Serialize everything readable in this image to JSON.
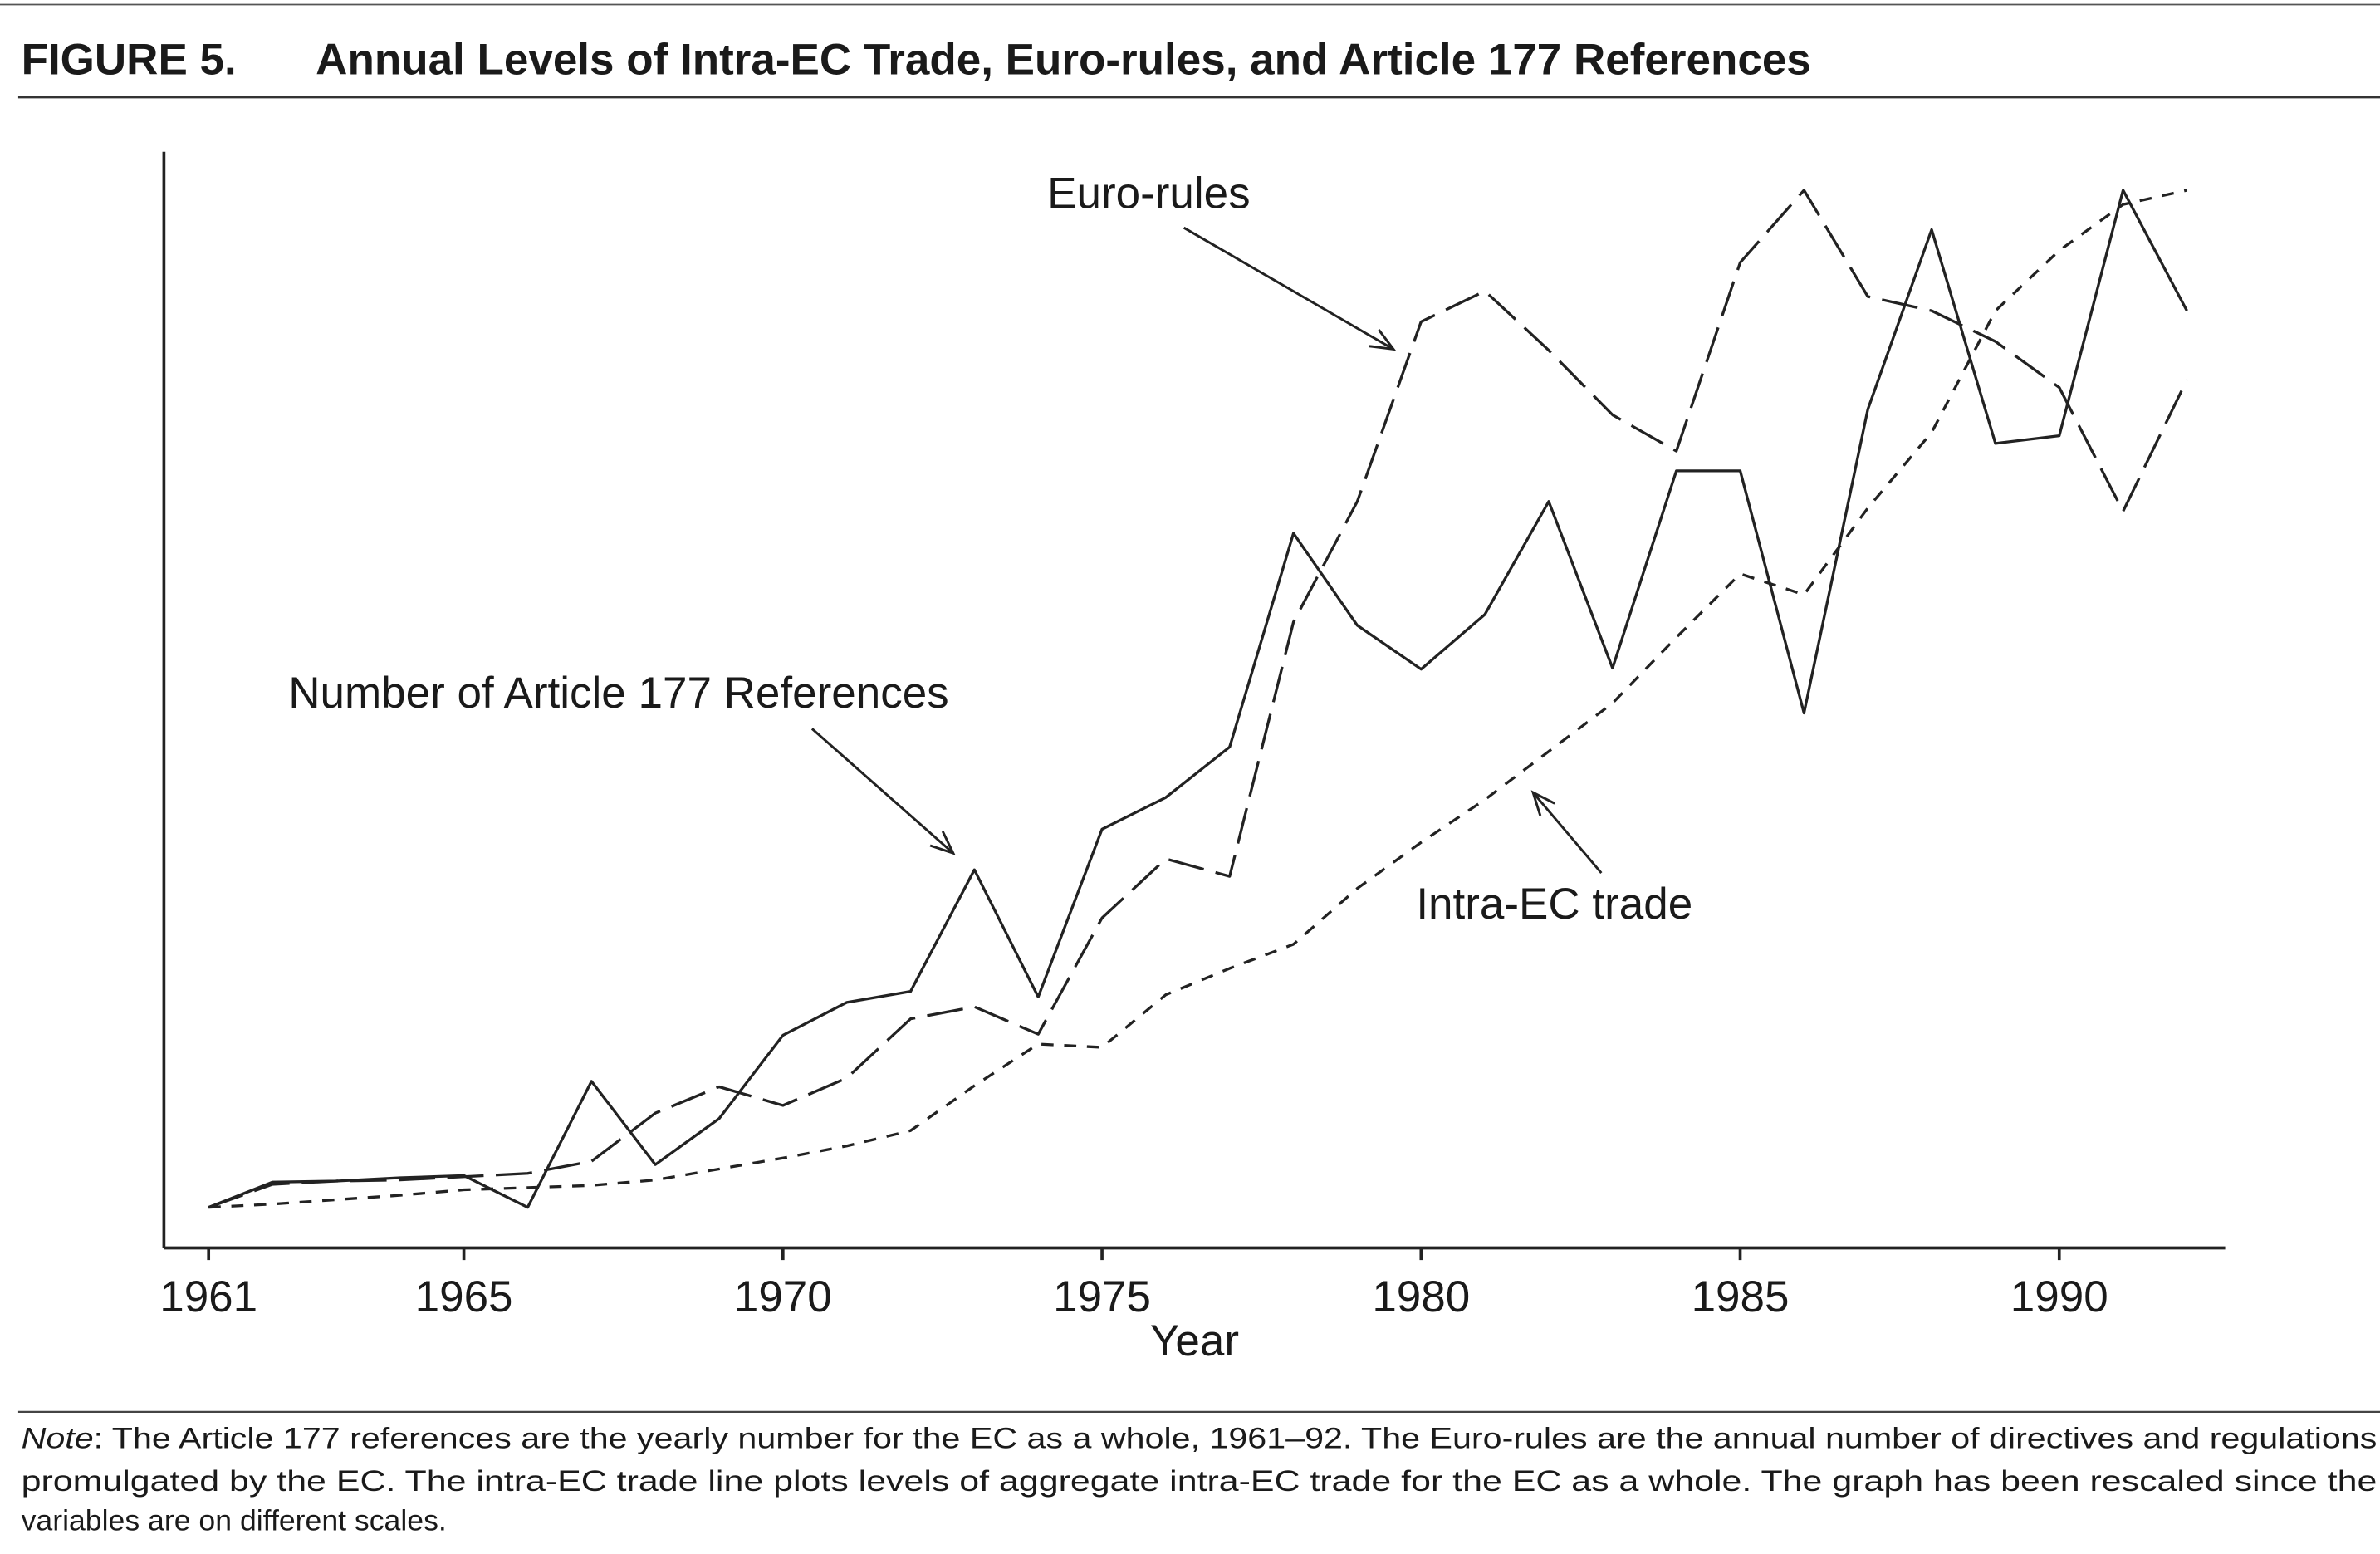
{
  "chart_data": {
    "type": "line",
    "figure_label": "FIGURE 5.",
    "title": "Annual Levels of Intra-EC Trade, Euro-rules, and Article 177 References",
    "xlabel": "Year",
    "x": [
      1961,
      1962,
      1963,
      1964,
      1965,
      1966,
      1967,
      1968,
      1969,
      1970,
      1971,
      1972,
      1973,
      1974,
      1975,
      1976,
      1977,
      1978,
      1979,
      1980,
      1981,
      1982,
      1983,
      1984,
      1985,
      1986,
      1987,
      1988,
      1989,
      1990,
      1991,
      1992
    ],
    "xlim": [
      1960.3,
      1992.6
    ],
    "xticks": [
      1961,
      1965,
      1970,
      1975,
      1980,
      1985,
      1990
    ],
    "ylim": [
      0,
      100
    ],
    "series": [
      {
        "name": "Number of Article 177 References",
        "color": "#222222",
        "dash": "solid",
        "values": [
          3.7,
          6.0,
          6.1,
          6.4,
          6.6,
          3.7,
          15.2,
          7.6,
          11.8,
          19.4,
          22.4,
          23.4,
          34.5,
          22.9,
          38.2,
          41.1,
          45.7,
          65.2,
          56.8,
          52.8,
          57.8,
          68.1,
          52.9,
          70.9,
          70.9,
          48.8,
          76.5,
          92.9,
          73.4,
          74.1,
          96.5,
          85.5
        ]
      },
      {
        "name": "Euro-rules",
        "color": "#222222",
        "dash": "long",
        "values": [
          3.7,
          5.8,
          6.1,
          6.2,
          6.5,
          6.8,
          7.9,
          12.3,
          14.7,
          13.0,
          15.5,
          20.9,
          22.0,
          19.5,
          30.1,
          35.5,
          33.9,
          57.1,
          68.1,
          84.5,
          87.3,
          81.9,
          76.0,
          72.7,
          89.9,
          96.5,
          86.8,
          85.5,
          82.7,
          78.5,
          67.2,
          79.2
        ]
      },
      {
        "name": "Intra-EC trade",
        "color": "#222222",
        "dash": "short",
        "values": [
          3.7,
          4.0,
          4.4,
          4.8,
          5.3,
          5.5,
          5.7,
          6.2,
          7.2,
          8.2,
          9.3,
          10.7,
          14.8,
          18.6,
          18.3,
          23.1,
          25.5,
          27.7,
          32.8,
          37.0,
          40.9,
          45.3,
          49.7,
          55.7,
          61.5,
          59.6,
          67.5,
          74.4,
          85.5,
          91.0,
          95.2,
          96.5
        ]
      }
    ]
  },
  "note": {
    "label": "Note",
    "lines": [
      ": The Article 177 references are the yearly number for the EC as a whole, 1961–92. The Euro-rules are the annual number of directives and regulations",
      "promulgated by the EC. The intra-EC trade line plots levels of aggregate intra-EC trade for the EC as a whole. The graph has been rescaled since the",
      "variables are on different scales."
    ]
  }
}
